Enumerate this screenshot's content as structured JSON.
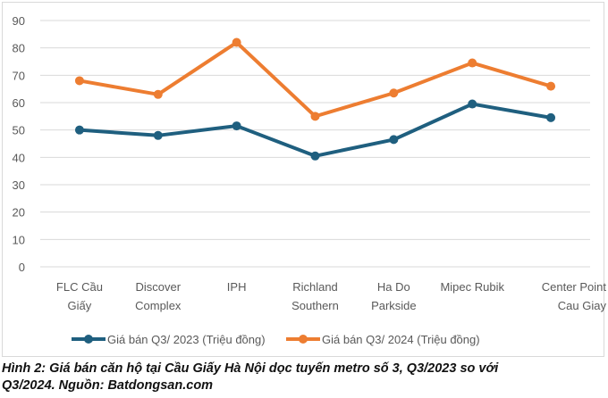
{
  "chart_data": {
    "type": "line",
    "categories": [
      [
        "FLC Cầu",
        "Giấy"
      ],
      [
        "Discover",
        "Complex"
      ],
      [
        "IPH"
      ],
      [
        "Richland",
        "Southern"
      ],
      [
        "Ha Do",
        "Parkside"
      ],
      [
        "Mipec Rubik"
      ],
      [
        "Center Point",
        "Cau Giay"
      ]
    ],
    "series": [
      {
        "name": "Giá bán Q3/ 2023 (Triệu đồng)",
        "color": "#1f5f7f",
        "values": [
          50,
          48,
          51.5,
          40.5,
          46.5,
          59.5,
          54.5
        ]
      },
      {
        "name": "Giá bán Q3/ 2024 (Triệu đồng)",
        "color": "#ed7d31",
        "values": [
          68,
          63,
          82,
          55,
          63.5,
          74.5,
          66
        ]
      }
    ],
    "ylim": [
      0,
      90
    ],
    "yticks": [
      "0",
      "10",
      "20",
      "30",
      "40",
      "50",
      "60",
      "70",
      "80",
      "90"
    ],
    "grid": true,
    "legend": "bottom"
  },
  "caption": {
    "line1": "Hình 2: Giá bán căn hộ tại Cầu Giấy Hà Nội dọc tuyến metro số 3, Q3/2023 so với",
    "line2": "Q3/2024. Nguồn: Batdongsan.com"
  }
}
